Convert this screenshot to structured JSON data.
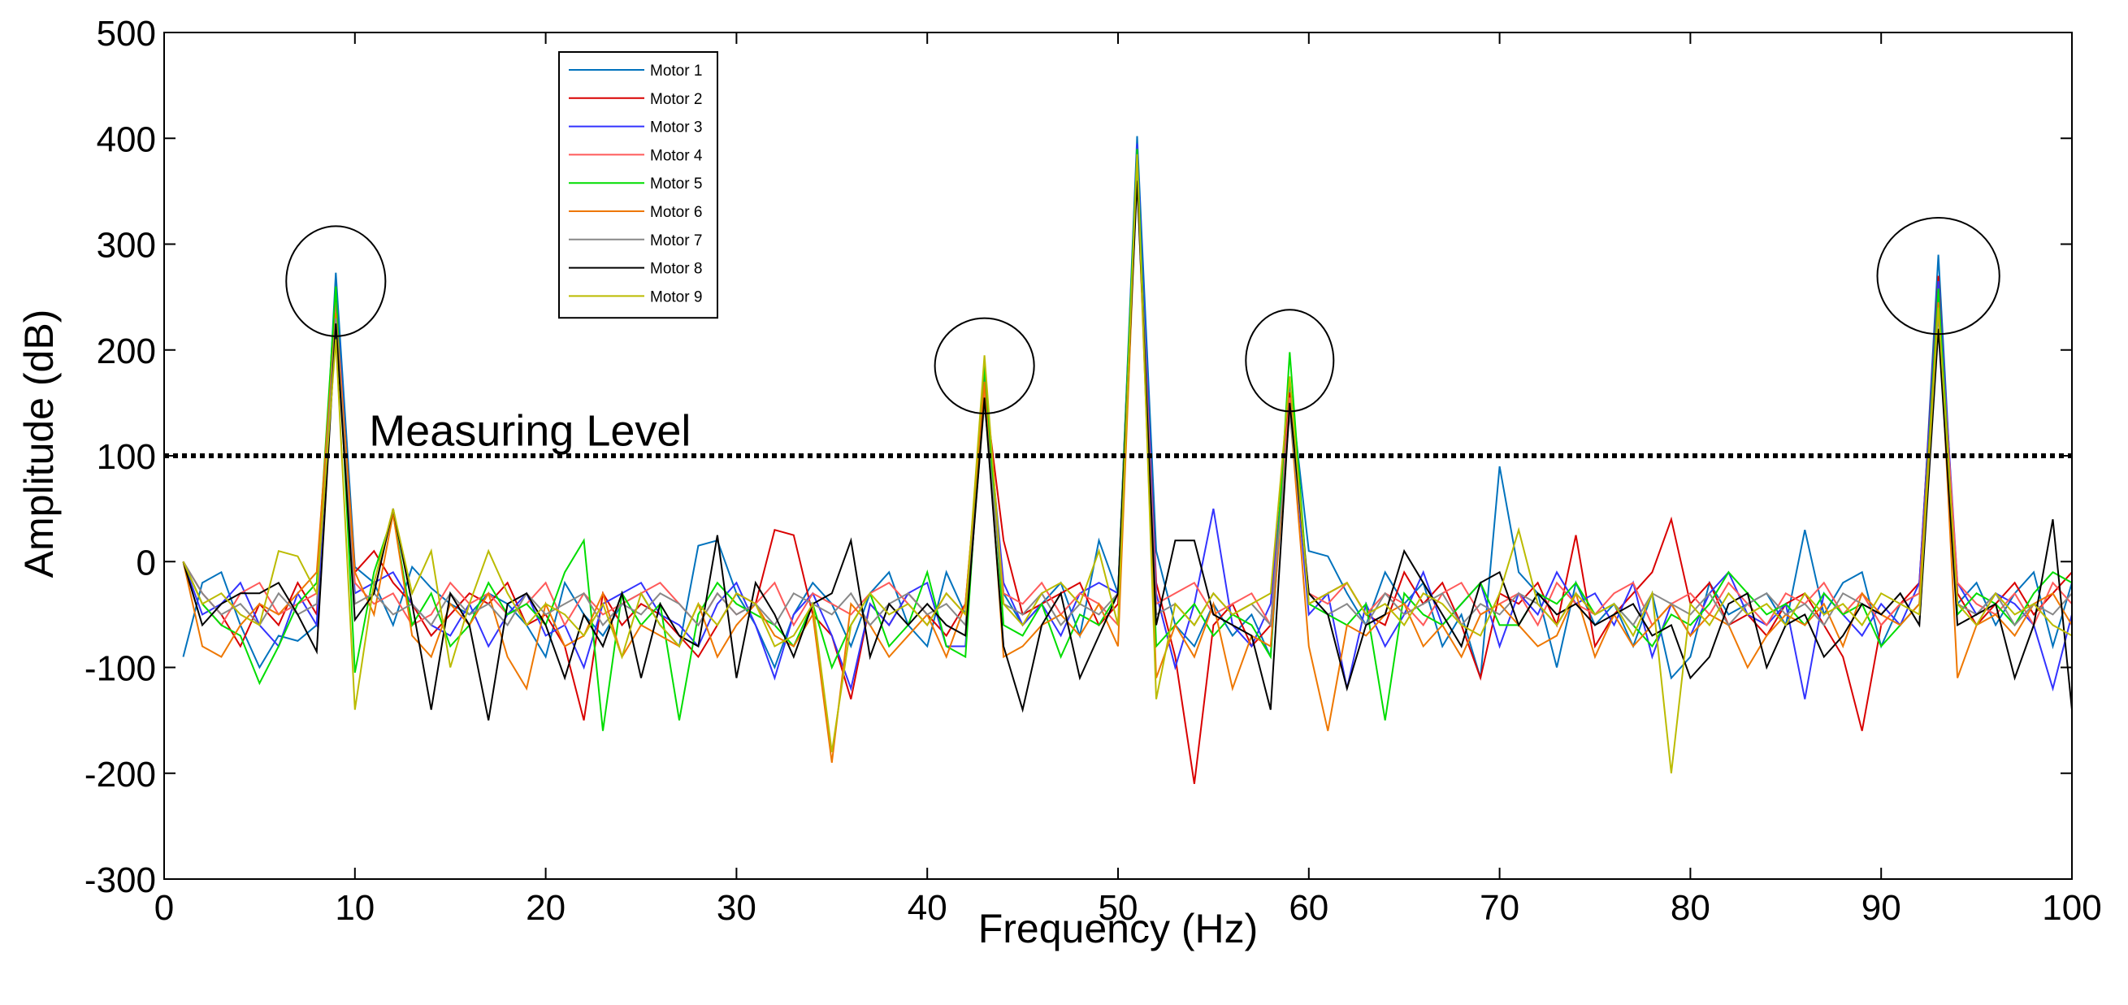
{
  "chart_data": {
    "type": "line",
    "title": "",
    "xlabel": "Frequency (Hz)",
    "ylabel": "Amplitude (dB)",
    "xlim": [
      0,
      100
    ],
    "ylim": [
      -300,
      500
    ],
    "xticks": [
      0,
      10,
      20,
      30,
      40,
      50,
      60,
      70,
      80,
      90,
      100
    ],
    "yticks": [
      -300,
      -200,
      -100,
      0,
      100,
      200,
      300,
      400,
      500
    ],
    "xtick_labels": [
      "0",
      "10",
      "20",
      "30",
      "40",
      "50",
      "60",
      "70",
      "80",
      "90",
      "100"
    ],
    "ytick_labels": [
      "-300",
      "-200",
      "-100",
      "0",
      "100",
      "200",
      "300",
      "400",
      "500"
    ],
    "grid": false,
    "legend_position": "top-left",
    "x": [
      1,
      2,
      3,
      4,
      5,
      6,
      7,
      8,
      9,
      10,
      11,
      12,
      13,
      14,
      15,
      16,
      17,
      18,
      19,
      20,
      21,
      22,
      23,
      24,
      25,
      26,
      27,
      28,
      29,
      30,
      31,
      32,
      33,
      34,
      35,
      36,
      37,
      38,
      39,
      40,
      41,
      42,
      43,
      44,
      45,
      46,
      47,
      48,
      49,
      50,
      51,
      52,
      53,
      54,
      55,
      56,
      57,
      58,
      59,
      60,
      61,
      62,
      63,
      64,
      65,
      66,
      67,
      68,
      69,
      70,
      71,
      72,
      73,
      74,
      75,
      76,
      77,
      78,
      79,
      80,
      81,
      82,
      83,
      84,
      85,
      86,
      87,
      88,
      89,
      90,
      91,
      92,
      93,
      94,
      95,
      96,
      97,
      98,
      99,
      100
    ],
    "series": [
      {
        "name": "Motor 1",
        "color": "#0072bd",
        "values": [
          -90,
          -20,
          -10,
          -60,
          -100,
          -70,
          -75,
          -60,
          273,
          -5,
          -20,
          -60,
          -5,
          -25,
          -40,
          -50,
          -30,
          -40,
          -60,
          -90,
          -20,
          -50,
          -70,
          -40,
          -30,
          -60,
          -80,
          15,
          20,
          -30,
          -60,
          -100,
          -50,
          -20,
          -40,
          -80,
          -30,
          -10,
          -60,
          -80,
          -10,
          -50,
          180,
          -30,
          -60,
          -40,
          -20,
          -70,
          20,
          -30,
          402,
          10,
          -60,
          -80,
          -40,
          -70,
          -50,
          -90,
          170,
          10,
          5,
          -30,
          -60,
          -10,
          -40,
          -20,
          -80,
          -50,
          -110,
          90,
          -10,
          -30,
          -100,
          -20,
          -60,
          -40,
          -80,
          -30,
          -110,
          -90,
          -20,
          -50,
          -40,
          -30,
          -60,
          30,
          -50,
          -20,
          -10,
          -80,
          -40,
          -30,
          290,
          -40,
          -20,
          -60,
          -30,
          -10,
          -80,
          -20
        ]
      },
      {
        "name": "Motor 2",
        "color": "#d90000",
        "values": [
          0,
          -30,
          -50,
          -80,
          -40,
          -60,
          -20,
          -50,
          240,
          -10,
          10,
          -20,
          -40,
          -70,
          -50,
          -30,
          -40,
          -20,
          -60,
          -50,
          -80,
          -150,
          -30,
          -60,
          -40,
          -50,
          -70,
          -90,
          -60,
          -30,
          -40,
          30,
          25,
          -50,
          -70,
          -130,
          -40,
          -60,
          -30,
          -50,
          -70,
          -40,
          165,
          20,
          -50,
          -40,
          -30,
          -20,
          -60,
          -40,
          380,
          -20,
          -90,
          -210,
          -60,
          -40,
          -80,
          -60,
          160,
          -40,
          -30,
          -20,
          -50,
          -60,
          -10,
          -40,
          -20,
          -60,
          -110,
          -30,
          -40,
          -20,
          -60,
          25,
          -80,
          -50,
          -30,
          -10,
          40,
          -40,
          -20,
          -60,
          -50,
          -70,
          -40,
          -30,
          -60,
          -90,
          -160,
          -60,
          -40,
          -20,
          270,
          -30,
          -60,
          -40,
          -20,
          -50,
          -30,
          -10
        ]
      },
      {
        "name": "Motor 3",
        "color": "#3333ff",
        "values": [
          0,
          -50,
          -40,
          -20,
          -60,
          -80,
          -30,
          -60,
          255,
          -30,
          -20,
          -10,
          -40,
          -60,
          -70,
          -40,
          -80,
          -50,
          -30,
          -70,
          -60,
          -100,
          -40,
          -30,
          -20,
          -50,
          -60,
          -80,
          -40,
          -20,
          -60,
          -110,
          -50,
          -30,
          -70,
          -120,
          -40,
          -60,
          -30,
          -20,
          -80,
          -80,
          170,
          -20,
          -60,
          -40,
          -70,
          -30,
          -20,
          -30,
          395,
          -30,
          -100,
          -40,
          50,
          -60,
          -80,
          -40,
          150,
          -50,
          -30,
          -120,
          -40,
          -80,
          -50,
          -10,
          -60,
          -40,
          -20,
          -80,
          -30,
          -50,
          -10,
          -40,
          -30,
          -60,
          -20,
          -90,
          -40,
          -70,
          -30,
          -10,
          -50,
          -60,
          -40,
          -130,
          -30,
          -50,
          -70,
          -40,
          -60,
          -20,
          265,
          -20,
          -50,
          -30,
          -40,
          -60,
          -120,
          -50
        ]
      },
      {
        "name": "Motor 4",
        "color": "#ff5a5a",
        "values": [
          0,
          -40,
          -60,
          -30,
          -20,
          -50,
          -40,
          -30,
          245,
          -20,
          -40,
          -30,
          -60,
          -50,
          -20,
          -40,
          -30,
          -50,
          -40,
          -20,
          -60,
          -30,
          -50,
          -40,
          -30,
          -20,
          -40,
          -60,
          -30,
          -50,
          -40,
          -20,
          -60,
          -30,
          -40,
          -50,
          -30,
          -20,
          -40,
          -60,
          -30,
          -50,
          160,
          -30,
          -40,
          -20,
          -50,
          -30,
          -40,
          -60,
          375,
          -40,
          -30,
          -20,
          -50,
          -40,
          -30,
          -60,
          155,
          -30,
          -40,
          -20,
          -50,
          -30,
          -40,
          -60,
          -30,
          -20,
          -50,
          -40,
          -30,
          -60,
          -20,
          -40,
          -50,
          -30,
          -20,
          -60,
          -40,
          -30,
          -50,
          -20,
          -40,
          -60,
          -30,
          -40,
          -20,
          -50,
          -30,
          -60,
          -40,
          -30,
          250,
          -20,
          -40,
          -50,
          -30,
          -60,
          -20,
          -40
        ]
      },
      {
        "name": "Motor 5",
        "color": "#00dd00",
        "values": [
          0,
          -40,
          -60,
          -70,
          -115,
          -80,
          -40,
          -20,
          260,
          -105,
          -10,
          45,
          -60,
          -30,
          -80,
          -60,
          -20,
          -50,
          -40,
          -60,
          -10,
          20,
          -160,
          -30,
          -60,
          -40,
          -150,
          -50,
          -20,
          -40,
          -50,
          -60,
          -80,
          -40,
          -100,
          -60,
          -30,
          -80,
          -60,
          -10,
          -80,
          -90,
          185,
          -60,
          -70,
          -40,
          -90,
          -50,
          -60,
          -30,
          390,
          -80,
          -60,
          -40,
          -70,
          -50,
          -60,
          -90,
          198,
          -40,
          -50,
          -60,
          -40,
          -150,
          -30,
          -50,
          -60,
          -40,
          -20,
          -60,
          -60,
          -30,
          -40,
          -20,
          -50,
          -40,
          -60,
          -80,
          -50,
          -60,
          -40,
          -10,
          -30,
          -50,
          -40,
          -60,
          -30,
          -50,
          -40,
          -80,
          -60,
          -40,
          258,
          -50,
          -30,
          -40,
          -60,
          -30,
          -10,
          -20
        ]
      },
      {
        "name": "Motor 6",
        "color": "#ee7700",
        "values": [
          0,
          -80,
          -90,
          -60,
          -40,
          -50,
          -30,
          -10,
          235,
          -10,
          -50,
          45,
          -70,
          -90,
          -40,
          -60,
          -30,
          -90,
          -120,
          -40,
          -80,
          -70,
          -30,
          -90,
          -60,
          -70,
          -80,
          -40,
          -90,
          -60,
          -40,
          -70,
          -80,
          -50,
          -190,
          -40,
          -60,
          -90,
          -70,
          -50,
          -90,
          -40,
          170,
          -90,
          -80,
          -60,
          -50,
          -70,
          -40,
          -80,
          370,
          -110,
          -60,
          -90,
          -40,
          -120,
          -70,
          -80,
          145,
          -80,
          -160,
          -60,
          -70,
          -50,
          -40,
          -80,
          -60,
          -90,
          -50,
          -40,
          -60,
          -80,
          -70,
          -30,
          -90,
          -50,
          -80,
          -60,
          -40,
          -70,
          -50,
          -60,
          -100,
          -70,
          -50,
          -60,
          -40,
          -80,
          -30,
          -50,
          -60,
          -40,
          245,
          -110,
          -60,
          -50,
          -70,
          -40,
          -30,
          -60
        ]
      },
      {
        "name": "Motor 7",
        "color": "#888888",
        "values": [
          0,
          -30,
          -50,
          -40,
          -60,
          -30,
          -50,
          -40,
          230,
          -40,
          -30,
          -50,
          -40,
          -60,
          -30,
          -50,
          -40,
          -60,
          -30,
          -50,
          -40,
          -30,
          -60,
          -40,
          -50,
          -30,
          -40,
          -60,
          -30,
          -50,
          -40,
          -60,
          -30,
          -40,
          -50,
          -30,
          -60,
          -40,
          -30,
          -50,
          -40,
          -60,
          150,
          -40,
          -50,
          -30,
          -60,
          -40,
          -50,
          -30,
          365,
          -50,
          -40,
          -60,
          -30,
          -50,
          -40,
          -60,
          140,
          -30,
          -50,
          -40,
          -60,
          -30,
          -50,
          -40,
          -30,
          -60,
          -40,
          -50,
          -30,
          -40,
          -60,
          -30,
          -50,
          -40,
          -60,
          -30,
          -40,
          -50,
          -30,
          -60,
          -40,
          -30,
          -50,
          -40,
          -60,
          -30,
          -40,
          -50,
          -30,
          -60,
          235,
          -40,
          -50,
          -30,
          -60,
          -40,
          -50,
          -30
        ]
      },
      {
        "name": "Motor 8",
        "color": "#000000",
        "values": [
          0,
          -60,
          -40,
          -30,
          -30,
          -20,
          -50,
          -85,
          225,
          -55,
          -30,
          50,
          -40,
          -140,
          -30,
          -60,
          -150,
          -40,
          -30,
          -60,
          -110,
          -50,
          -80,
          -30,
          -110,
          -40,
          -70,
          -80,
          25,
          -110,
          -20,
          -50,
          -90,
          -40,
          -30,
          20,
          -90,
          -40,
          -60,
          -40,
          -60,
          -70,
          155,
          -80,
          -140,
          -60,
          -30,
          -110,
          -70,
          -30,
          360,
          -60,
          20,
          20,
          -50,
          -60,
          -70,
          -140,
          150,
          -30,
          -50,
          -120,
          -60,
          -50,
          10,
          -20,
          -50,
          -80,
          -20,
          -10,
          -60,
          -30,
          -50,
          -40,
          -60,
          -50,
          -40,
          -70,
          -60,
          -110,
          -90,
          -40,
          -30,
          -100,
          -60,
          -50,
          -90,
          -70,
          -40,
          -50,
          -30,
          -60,
          220,
          -60,
          -50,
          -40,
          -110,
          -60,
          40,
          -140
        ]
      },
      {
        "name": "Motor 9",
        "color": "#bbbb00",
        "values": [
          0,
          -40,
          -30,
          -50,
          -60,
          10,
          5,
          -30,
          210,
          -140,
          -20,
          50,
          -30,
          10,
          -100,
          -40,
          10,
          -30,
          -60,
          -40,
          -50,
          -70,
          -40,
          -90,
          -30,
          -60,
          -80,
          -40,
          -60,
          -30,
          -40,
          -80,
          -70,
          -40,
          -180,
          -60,
          -30,
          -50,
          -40,
          -60,
          -30,
          -50,
          195,
          -40,
          -60,
          -30,
          -20,
          -40,
          10,
          -60,
          385,
          -130,
          -40,
          -60,
          -30,
          -50,
          -40,
          -30,
          175,
          -40,
          -30,
          -20,
          -50,
          -40,
          -60,
          -30,
          -40,
          -60,
          -70,
          -30,
          30,
          -40,
          -60,
          -30,
          -50,
          -40,
          -70,
          -30,
          -200,
          -40,
          -60,
          -30,
          -50,
          -40,
          -60,
          -30,
          -50,
          -40,
          -60,
          -30,
          -40,
          -50,
          240,
          -40,
          -60,
          -30,
          -50,
          -40,
          -60,
          -70
        ]
      }
    ],
    "annotations": [
      {
        "type": "hline",
        "y": 100,
        "style": "dotted",
        "label": "Measuring Level",
        "label_x": 15,
        "label_y": 125
      },
      {
        "type": "circle",
        "cx": 9,
        "cy": 265,
        "r_x_units": 2.6,
        "r_y_units": 52
      },
      {
        "type": "circle",
        "cx": 43,
        "cy": 185,
        "r_x_units": 2.6,
        "r_y_units": 45
      },
      {
        "type": "circle",
        "cx": 59,
        "cy": 190,
        "r_x_units": 2.3,
        "r_y_units": 48
      },
      {
        "type": "circle",
        "cx": 93,
        "cy": 270,
        "r_x_units": 3.2,
        "r_y_units": 55
      }
    ]
  }
}
